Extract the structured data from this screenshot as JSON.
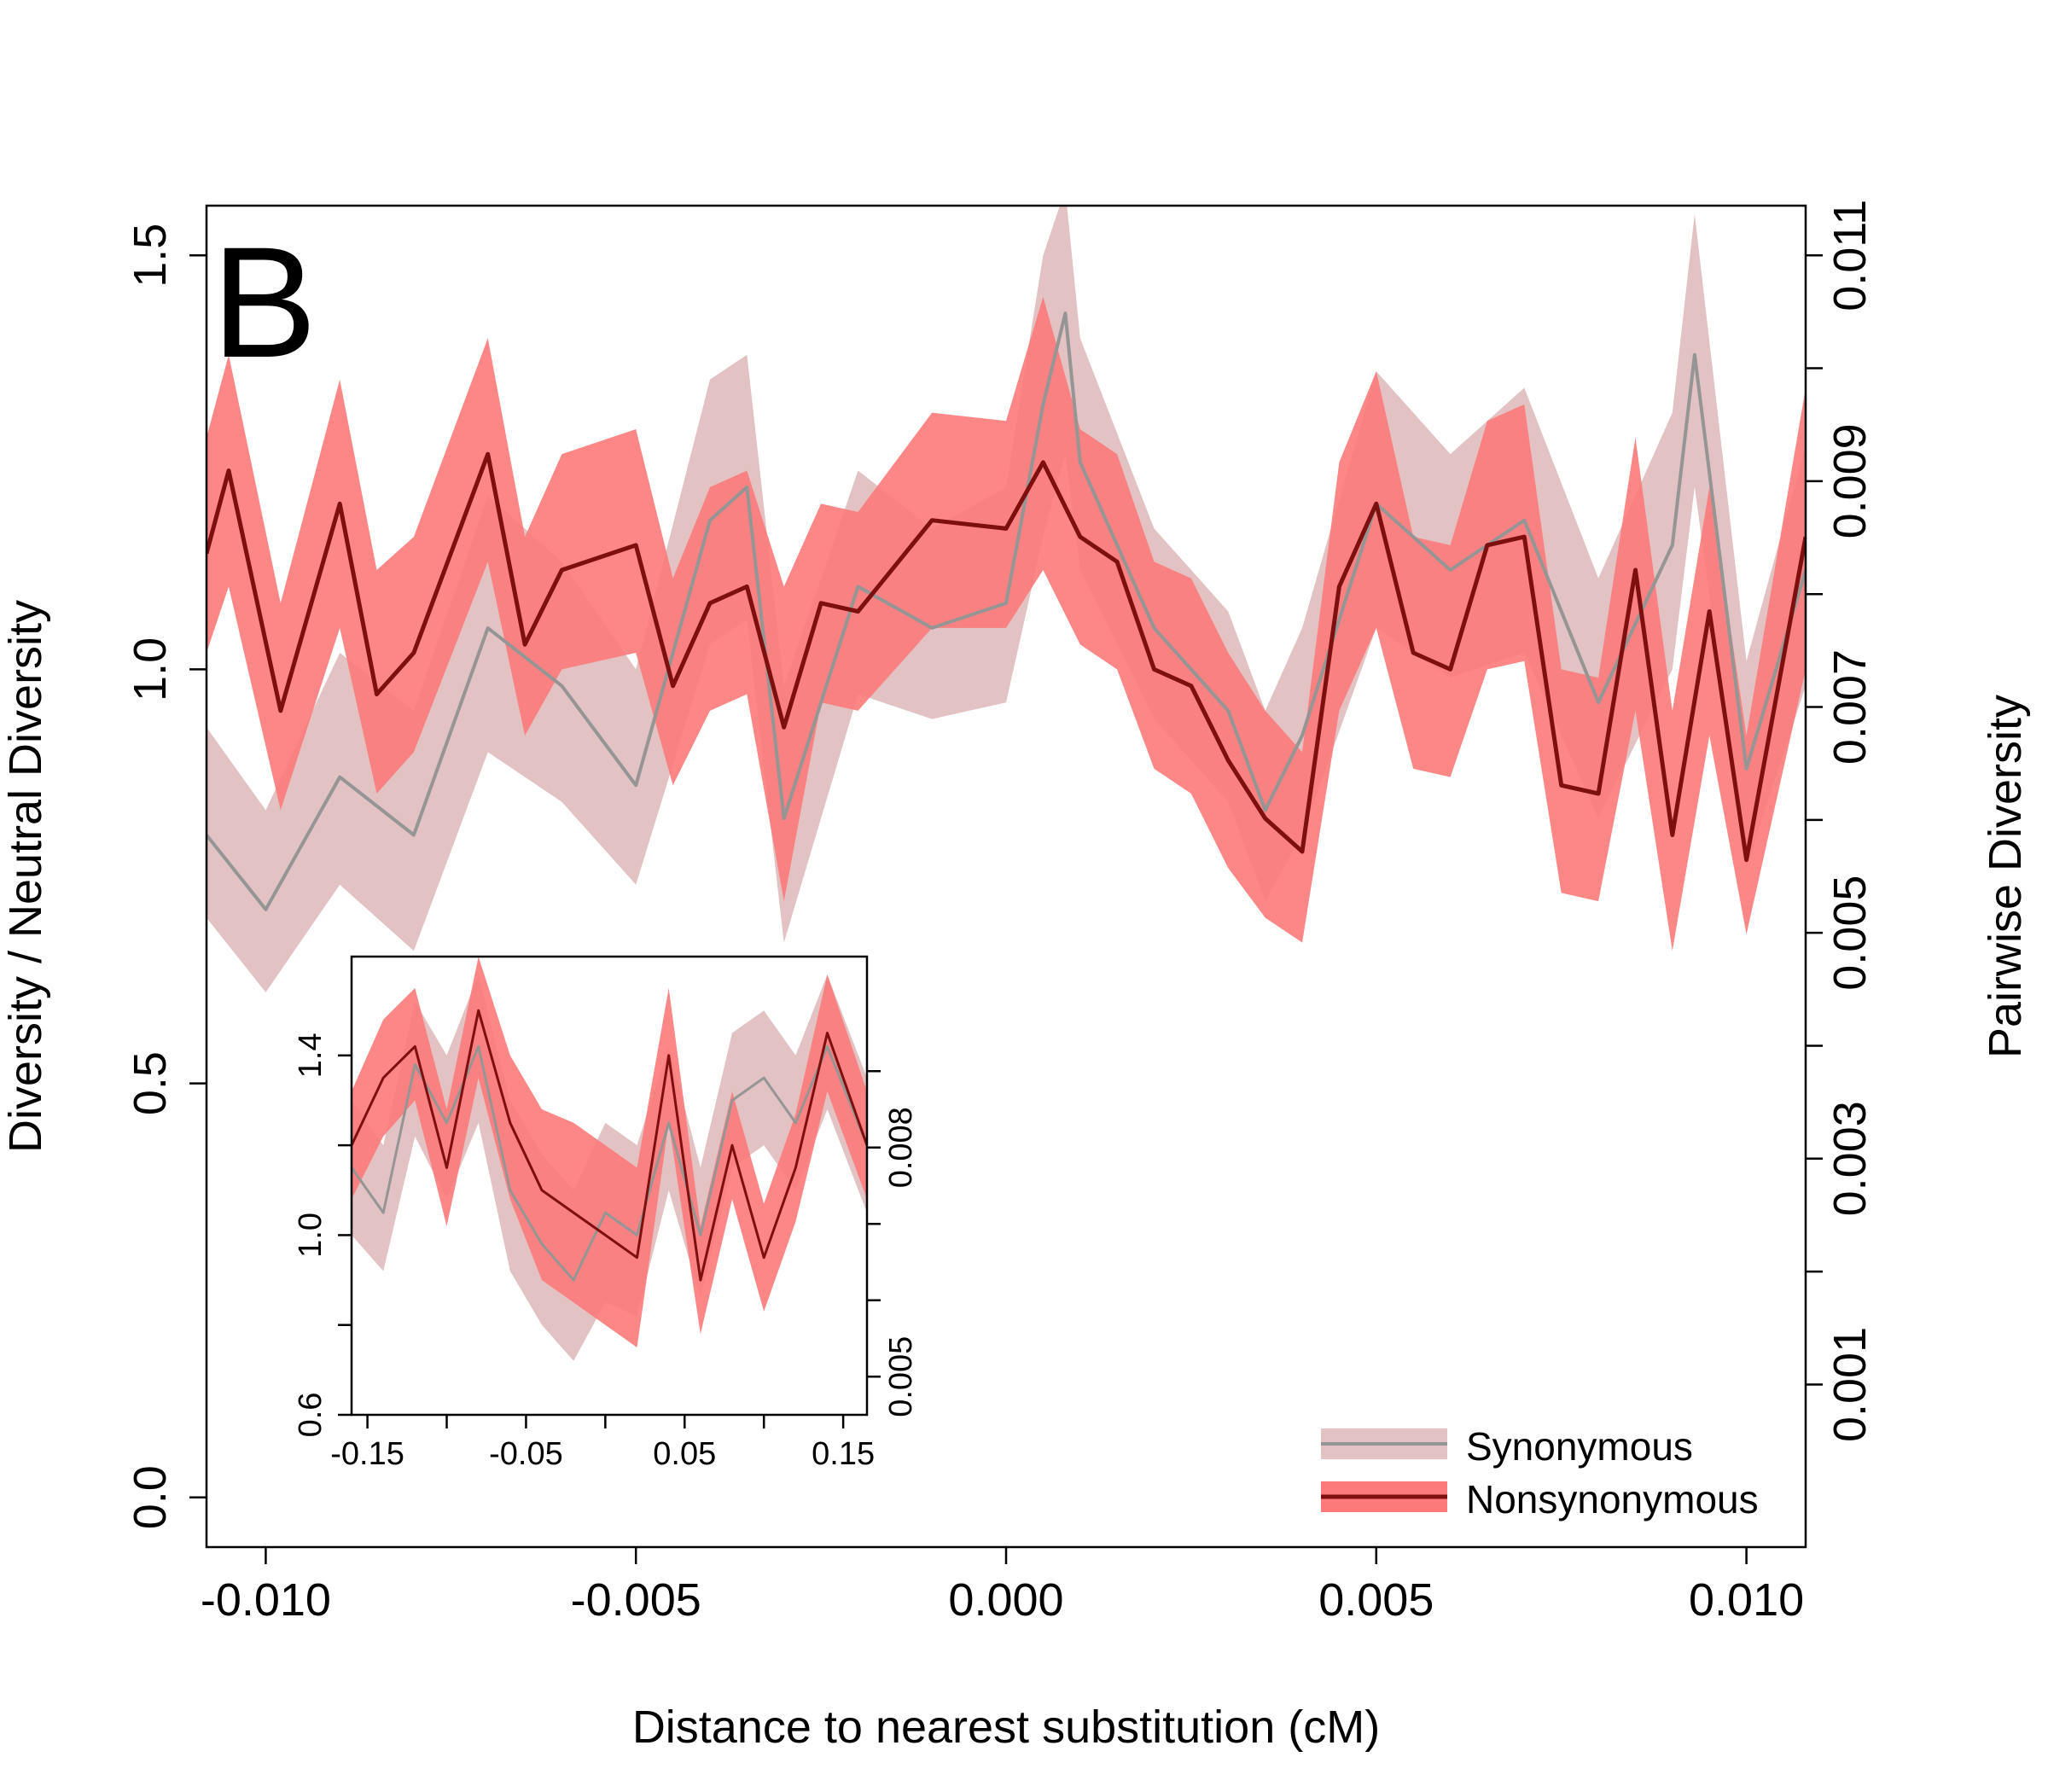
{
  "panel_label": "B",
  "colors": {
    "synonymous_band": "#e2c2c2",
    "synonymous_line": "#959595",
    "nonsynonymous_band": "#fd7a7a",
    "nonsynonymous_line": "#7e0f0f",
    "axis": "#000000"
  },
  "chart_data": [
    {
      "type": "line",
      "role": "main",
      "xlabel": "Distance to nearest substitution (cM)",
      "ylabel": "Diversity / Neutral Diversity",
      "y2label": "Pairwise Diversity",
      "xlim": [
        -0.0108,
        0.0108
      ],
      "ylim": [
        -0.06,
        1.56
      ],
      "y2lim": [
        -0.00044,
        0.01144
      ],
      "xticks": [
        -0.01,
        -0.005,
        0.0,
        0.005,
        0.01
      ],
      "xtick_labels": [
        "-0.010",
        "-0.005",
        "0.000",
        "0.005",
        "0.010"
      ],
      "yticks": [
        0.0,
        0.5,
        1.0,
        1.5
      ],
      "ytick_labels": [
        "0.0",
        "0.5",
        "1.0",
        "1.5"
      ],
      "y2ticks": [
        0.001,
        0.002,
        0.003,
        0.004,
        0.005,
        0.006,
        0.007,
        0.008,
        0.009,
        0.01,
        0.011
      ],
      "y2tick_labels": [
        "0.001",
        "",
        "0.003",
        "",
        "0.005",
        "",
        "0.007",
        "",
        "0.009",
        "",
        "0.011"
      ],
      "legend": {
        "position": "bottom-right",
        "entries": [
          "Synonymous",
          "Nonsynonymous"
        ]
      },
      "series": [
        {
          "name": "Synonymous",
          "x": [
            -0.0108,
            -0.01,
            -0.009,
            -0.008,
            -0.007,
            -0.006,
            -0.005,
            -0.004,
            -0.0035,
            -0.003,
            -0.002,
            -0.001,
            0.0,
            0.0005,
            0.0008,
            0.001,
            0.002,
            0.003,
            0.0035,
            0.004,
            0.005,
            0.006,
            0.007,
            0.008,
            0.009,
            0.0093,
            0.01,
            0.0108
          ],
          "values": [
            0.8,
            0.71,
            0.87,
            0.8,
            1.05,
            0.98,
            0.86,
            1.18,
            1.22,
            0.82,
            1.1,
            1.05,
            1.08,
            1.32,
            1.43,
            1.25,
            1.05,
            0.95,
            0.83,
            0.92,
            1.2,
            1.12,
            1.18,
            0.96,
            1.15,
            1.38,
            0.88,
            1.12
          ],
          "lower": [
            0.7,
            0.61,
            0.74,
            0.66,
            0.9,
            0.84,
            0.74,
            1.03,
            1.06,
            0.67,
            0.97,
            0.94,
            0.96,
            1.16,
            1.26,
            1.12,
            0.94,
            0.84,
            0.72,
            0.8,
            1.05,
            0.99,
            1.02,
            0.82,
            1.0,
            1.22,
            0.76,
            0.98
          ],
          "upper": [
            0.93,
            0.83,
            1.02,
            0.95,
            1.21,
            1.13,
            1.0,
            1.35,
            1.38,
            0.98,
            1.24,
            1.17,
            1.22,
            1.5,
            1.58,
            1.4,
            1.17,
            1.07,
            0.95,
            1.05,
            1.36,
            1.26,
            1.34,
            1.11,
            1.31,
            1.55,
            1.01,
            1.27
          ]
        },
        {
          "name": "Nonsynonymous",
          "x": [
            -0.0108,
            -0.0105,
            -0.0098,
            -0.009,
            -0.0085,
            -0.008,
            -0.007,
            -0.0065,
            -0.006,
            -0.005,
            -0.0045,
            -0.004,
            -0.0035,
            -0.003,
            -0.0025,
            -0.002,
            -0.001,
            0.0,
            0.0005,
            0.001,
            0.0015,
            0.002,
            0.0025,
            0.003,
            0.0035,
            0.004,
            0.0045,
            0.005,
            0.0055,
            0.006,
            0.0065,
            0.007,
            0.0075,
            0.008,
            0.0085,
            0.009,
            0.0095,
            0.01,
            0.0108
          ],
          "values": [
            1.14,
            1.24,
            0.95,
            1.2,
            0.97,
            1.02,
            1.26,
            1.03,
            1.12,
            1.15,
            0.98,
            1.08,
            1.1,
            0.93,
            1.08,
            1.07,
            1.18,
            1.17,
            1.25,
            1.16,
            1.13,
            1.0,
            0.98,
            0.89,
            0.82,
            0.78,
            1.1,
            1.2,
            1.02,
            1.0,
            1.15,
            1.16,
            0.86,
            0.85,
            1.12,
            0.8,
            1.07,
            0.77,
            1.16
          ],
          "lower": [
            1.02,
            1.1,
            0.83,
            1.05,
            0.85,
            0.9,
            1.13,
            0.92,
            1.0,
            1.02,
            0.86,
            0.95,
            0.97,
            0.72,
            0.96,
            0.95,
            1.05,
            1.05,
            1.12,
            1.03,
            1.0,
            0.88,
            0.85,
            0.76,
            0.7,
            0.67,
            0.95,
            1.05,
            0.88,
            0.87,
            1.0,
            1.01,
            0.73,
            0.72,
            0.95,
            0.66,
            0.92,
            0.68,
            1.0
          ],
          "upper": [
            1.28,
            1.38,
            1.08,
            1.35,
            1.12,
            1.16,
            1.4,
            1.16,
            1.26,
            1.29,
            1.11,
            1.22,
            1.24,
            1.1,
            1.2,
            1.19,
            1.31,
            1.3,
            1.45,
            1.29,
            1.26,
            1.13,
            1.11,
            1.02,
            0.95,
            0.9,
            1.25,
            1.36,
            1.16,
            1.15,
            1.3,
            1.32,
            1.0,
            0.99,
            1.28,
            0.95,
            1.22,
            0.92,
            1.34
          ]
        }
      ]
    },
    {
      "type": "line",
      "role": "inset",
      "xlim": [
        -0.16,
        0.165
      ],
      "ylim": [
        0.6,
        1.62
      ],
      "y2lim": [
        0.0045,
        0.0105
      ],
      "xticks": [
        -0.15,
        -0.1,
        -0.05,
        0.0,
        0.05,
        0.1,
        0.15
      ],
      "xtick_labels": [
        "-0.15",
        "",
        "-0.05",
        "",
        "0.05",
        "",
        "0.15"
      ],
      "yticks": [
        0.6,
        0.8,
        1.0,
        1.2,
        1.4
      ],
      "ytick_labels": [
        "0.6",
        "",
        "1.0",
        "",
        "1.4"
      ],
      "y2ticks": [
        0.005,
        0.006,
        0.007,
        0.008,
        0.009
      ],
      "y2tick_labels": [
        "0.005",
        "",
        "",
        "0.008",
        ""
      ],
      "series": [
        {
          "name": "Synonymous",
          "x": [
            -0.16,
            -0.14,
            -0.12,
            -0.1,
            -0.08,
            -0.06,
            -0.04,
            -0.02,
            0.0,
            0.02,
            0.04,
            0.06,
            0.08,
            0.1,
            0.12,
            0.14,
            0.165
          ],
          "values": [
            1.15,
            1.05,
            1.38,
            1.25,
            1.42,
            1.1,
            0.98,
            0.9,
            1.05,
            1.0,
            1.25,
            1.0,
            1.3,
            1.35,
            1.25,
            1.42,
            1.2
          ],
          "lower": [
            1.0,
            0.92,
            1.22,
            1.08,
            1.25,
            0.92,
            0.8,
            0.72,
            0.85,
            0.82,
            1.1,
            0.86,
            1.15,
            1.2,
            1.1,
            1.28,
            1.05
          ],
          "upper": [
            1.3,
            1.2,
            1.52,
            1.4,
            1.58,
            1.3,
            1.18,
            1.1,
            1.25,
            1.2,
            1.42,
            1.15,
            1.45,
            1.5,
            1.4,
            1.58,
            1.35
          ]
        },
        {
          "name": "Nonsynonymous",
          "x": [
            -0.16,
            -0.14,
            -0.12,
            -0.1,
            -0.08,
            -0.06,
            -0.04,
            -0.02,
            0.0,
            0.02,
            0.04,
            0.06,
            0.08,
            0.1,
            0.12,
            0.14,
            0.165
          ],
          "values": [
            1.2,
            1.35,
            1.42,
            1.15,
            1.5,
            1.25,
            1.1,
            1.05,
            1.0,
            0.95,
            1.4,
            0.9,
            1.2,
            0.95,
            1.15,
            1.45,
            1.2
          ],
          "lower": [
            1.08,
            1.22,
            1.3,
            1.02,
            1.35,
            1.08,
            0.9,
            0.85,
            0.8,
            0.75,
            1.25,
            0.78,
            1.08,
            0.83,
            1.03,
            1.32,
            1.08
          ],
          "upper": [
            1.32,
            1.48,
            1.55,
            1.28,
            1.62,
            1.4,
            1.28,
            1.25,
            1.2,
            1.15,
            1.55,
            1.02,
            1.32,
            1.07,
            1.27,
            1.58,
            1.32
          ]
        }
      ]
    }
  ]
}
